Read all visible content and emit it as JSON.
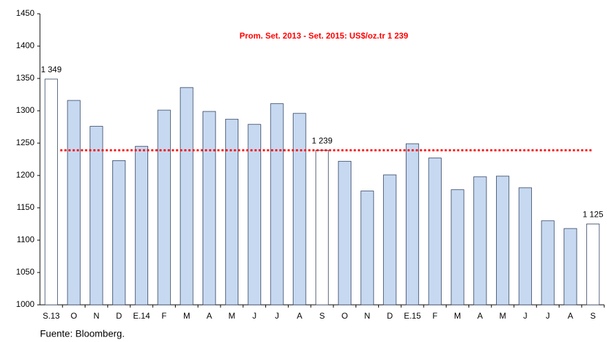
{
  "chart_data": {
    "type": "bar",
    "annotation": "Prom. Set. 2013 - Set. 2015: US$/oz.tr 1 239",
    "source": "Fuente: Bloomberg.",
    "categories": [
      "S.13",
      "O",
      "N",
      "D",
      "E.14",
      "F",
      "M",
      "A",
      "M",
      "J",
      "J",
      "A",
      "S",
      "O",
      "N",
      "D",
      "E.15",
      "F",
      "M",
      "A",
      "M",
      "J",
      "J",
      "A",
      "S"
    ],
    "values": [
      1349,
      1316,
      1276,
      1223,
      1245,
      1301,
      1336,
      1299,
      1287,
      1279,
      1311,
      1296,
      1239,
      1222,
      1176,
      1201,
      1249,
      1227,
      1178,
      1198,
      1199,
      1181,
      1130,
      1118,
      1125
    ],
    "value_labels": [
      "1 349",
      null,
      null,
      null,
      null,
      null,
      null,
      null,
      null,
      null,
      null,
      null,
      "1 239",
      null,
      null,
      null,
      null,
      null,
      null,
      null,
      null,
      null,
      null,
      null,
      "1 125"
    ],
    "colors": [
      "#ffffff",
      "#c6d9f1",
      "#c6d9f1",
      "#c6d9f1",
      "#c6d9f1",
      "#c6d9f1",
      "#c6d9f1",
      "#c6d9f1",
      "#c6d9f1",
      "#c6d9f1",
      "#c6d9f1",
      "#c6d9f1",
      "#ffffff",
      "#c6d9f1",
      "#c6d9f1",
      "#c6d9f1",
      "#c6d9f1",
      "#c6d9f1",
      "#c6d9f1",
      "#c6d9f1",
      "#c6d9f1",
      "#c6d9f1",
      "#c6d9f1",
      "#c6d9f1",
      "#ffffff"
    ],
    "reference_line": {
      "value": 1239,
      "color": "#ff0000"
    },
    "ylim": [
      1000,
      1450
    ],
    "yticks": [
      1000,
      1050,
      1100,
      1150,
      1200,
      1250,
      1300,
      1350,
      1400,
      1450
    ]
  }
}
